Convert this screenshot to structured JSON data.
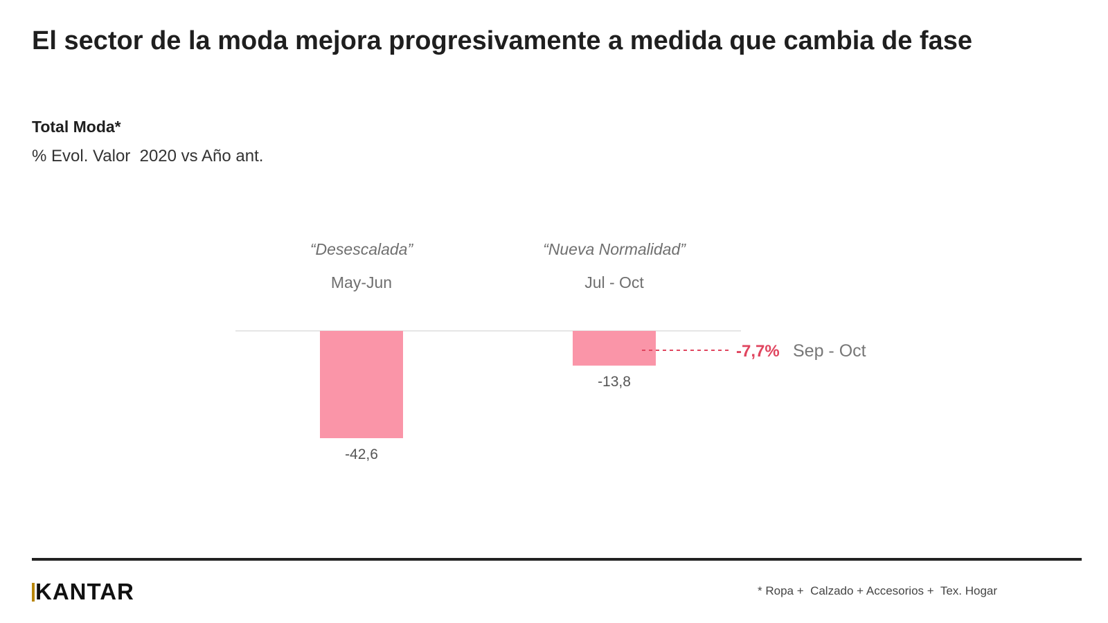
{
  "header": {
    "title": "El sector de la moda mejora progresivamente a medida que cambia de fase",
    "subtitle": "Total Moda*",
    "measure": "% Evol. Valor  2020 vs Año ant."
  },
  "chart_data": {
    "type": "bar",
    "title": "El sector de la moda mejora progresivamente a medida que cambia de fase",
    "subtitle": "Total Moda*",
    "ylabel": "% Evol. Valor  2020 vs Año ant.",
    "categories": [
      "May-Jun",
      "Jul - Oct"
    ],
    "phases": [
      "“Desescalada”",
      "“Nueva Normalidad”"
    ],
    "values": [
      -42.6,
      -13.8
    ],
    "value_labels": [
      "-42,6",
      "-13,8"
    ],
    "ylim": [
      -42.6,
      0
    ],
    "grid": false,
    "bar_color": "#fa95a8",
    "annotation": {
      "value": -7.7,
      "label": "-7,7%",
      "period": "Sep - Oct",
      "color": "#e0455f",
      "attached_to": "Jul - Oct"
    }
  },
  "footer": {
    "logo": "KANTAR",
    "footnote": "* Ropa +  Calzado + Accesorios +  Tex. Hogar"
  },
  "colors": {
    "bar": "#fa95a8",
    "accent": "#e0455f",
    "logo_mark": "#b8860b"
  }
}
